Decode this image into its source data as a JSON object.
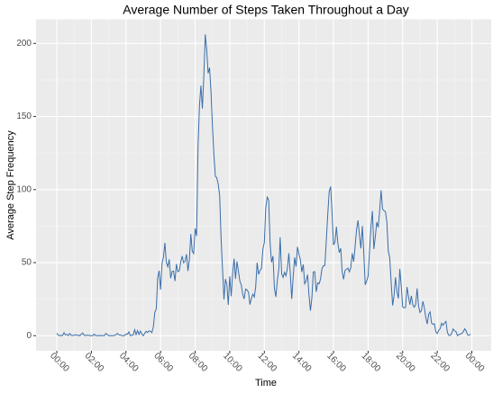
{
  "chart_data": {
    "type": "line",
    "title": "Average Number of Steps Taken Throughout a Day",
    "x_label": "Time",
    "y_label": "Average Step Frequency",
    "x": [
      0,
      5,
      10,
      15,
      20,
      25,
      30,
      35,
      40,
      45,
      50,
      55,
      60,
      65,
      70,
      75,
      80,
      85,
      90,
      95,
      100,
      105,
      110,
      115,
      120,
      125,
      130,
      135,
      140,
      145,
      150,
      155,
      160,
      165,
      170,
      175,
      180,
      185,
      190,
      195,
      200,
      205,
      210,
      215,
      220,
      225,
      230,
      235,
      240,
      245,
      250,
      255,
      260,
      265,
      270,
      275,
      280,
      285,
      290,
      295,
      300,
      305,
      310,
      315,
      320,
      325,
      330,
      335,
      340,
      345,
      350,
      355,
      360,
      365,
      370,
      375,
      380,
      385,
      390,
      395,
      400,
      405,
      410,
      415,
      420,
      425,
      430,
      435,
      440,
      445,
      450,
      455,
      460,
      465,
      470,
      475,
      480,
      485,
      490,
      495,
      500,
      505,
      510,
      515,
      520,
      525,
      530,
      535,
      540,
      545,
      550,
      555,
      560,
      565,
      570,
      575,
      580,
      585,
      590,
      595,
      600,
      605,
      610,
      615,
      620,
      625,
      630,
      635,
      640,
      645,
      650,
      655,
      660,
      665,
      670,
      675,
      680,
      685,
      690,
      695,
      700,
      705,
      710,
      715,
      720,
      725,
      730,
      735,
      740,
      745,
      750,
      755,
      760,
      765,
      770,
      775,
      780,
      785,
      790,
      795,
      800,
      805,
      810,
      815,
      820,
      825,
      830,
      835,
      840,
      845,
      850,
      855,
      860,
      865,
      870,
      875,
      880,
      885,
      890,
      895,
      900,
      905,
      910,
      915,
      920,
      925,
      930,
      935,
      940,
      945,
      950,
      955,
      960,
      965,
      970,
      975,
      980,
      985,
      990,
      995,
      1000,
      1005,
      1010,
      1015,
      1020,
      1025,
      1030,
      1035,
      1040,
      1045,
      1050,
      1055,
      1060,
      1065,
      1070,
      1075,
      1080,
      1085,
      1090,
      1095,
      1100,
      1105,
      1110,
      1115,
      1120,
      1125,
      1130,
      1135,
      1140,
      1145,
      1150,
      1155,
      1160,
      1165,
      1170,
      1175,
      1180,
      1185,
      1190,
      1195,
      1200,
      1205,
      1210,
      1215,
      1220,
      1225,
      1230,
      1235,
      1240,
      1245,
      1250,
      1255,
      1260,
      1265,
      1270,
      1275,
      1280,
      1285,
      1290,
      1295,
      1300,
      1305,
      1310,
      1315,
      1320,
      1325,
      1330,
      1335,
      1340,
      1345,
      1350,
      1355,
      1360,
      1365,
      1370,
      1375,
      1380,
      1385,
      1390,
      1395,
      1400,
      1405,
      1410,
      1415,
      1420,
      1425,
      1430,
      1435
    ],
    "series": [
      {
        "name": "steps",
        "color": "#3a6eaa",
        "values": [
          1.7,
          0.3,
          0.1,
          0.2,
          0.1,
          2.1,
          0.5,
          0.9,
          0,
          1.5,
          0.3,
          0.1,
          0.3,
          0.7,
          0.2,
          0.3,
          0,
          1.1,
          1.8,
          0.2,
          0.2,
          0.4,
          0.3,
          0,
          0,
          0,
          1.1,
          0,
          0,
          0.1,
          0,
          0.2,
          0,
          0,
          1.5,
          0.9,
          0,
          0,
          0,
          0,
          0.2,
          0.6,
          1.6,
          0.6,
          0.5,
          0.1,
          0,
          0,
          1.2,
          0.9,
          2.6,
          0,
          0.3,
          0.4,
          4.1,
          0.7,
          3.5,
          0.8,
          3.1,
          1.1,
          0,
          1.6,
          3,
          2.2,
          3.3,
          3,
          2.1,
          6.1,
          16,
          18.3,
          39.5,
          44.5,
          31.5,
          49.3,
          53.8,
          63.5,
          50,
          47.1,
          52.2,
          39.3,
          44,
          44.2,
          37.4,
          49,
          43.8,
          44.4,
          50.5,
          54.5,
          49.9,
          51,
          55.7,
          44.3,
          52.3,
          69.5,
          57.8,
          56.2,
          73.4,
          68.2,
          129.4,
          157.5,
          171.2,
          155.4,
          177.3,
          206.2,
          195.9,
          179.6,
          183.4,
          167,
          143.5,
          124,
          109.1,
          108.1,
          103.7,
          96,
          66.2,
          45.2,
          24.8,
          38.8,
          35,
          21.1,
          40.6,
          27,
          42.4,
          52.7,
          38.9,
          50.8,
          44.3,
          37.4,
          34.7,
          28.3,
          25.1,
          31.9,
          31.4,
          29.7,
          21.3,
          25.5,
          28.4,
          26.5,
          33.4,
          50,
          42,
          44.6,
          46,
          59.2,
          63.9,
          87.7,
          94.8,
          92.8,
          63.4,
          50.2,
          54.5,
          32.4,
          26.5,
          37.7,
          45.1,
          67.3,
          42.3,
          39.9,
          43.3,
          41,
          46.2,
          56.4,
          42.8,
          25.1,
          40,
          53.5,
          47.3,
          60.8,
          55.8,
          52,
          43.6,
          48.7,
          35.5,
          37.5,
          41.8,
          27.5,
          17.1,
          26.1,
          43.6,
          43.8,
          30,
          36.1,
          35.5,
          38.8,
          46,
          47.8,
          48.1,
          65.3,
          82.9,
          98.7,
          102.1,
          84,
          62.1,
          64.1,
          74.5,
          63.2,
          56.9,
          59.8,
          43.9,
          38.6,
          44.7,
          45.5,
          46.2,
          43.7,
          46.6,
          56.3,
          50.7,
          61.2,
          72.7,
          78.9,
          68.9,
          59.7,
          75.1,
          56.5,
          34.8,
          37.5,
          40.7,
          58,
          74.7,
          85.3,
          59.3,
          67.8,
          77.7,
          74.2,
          85.3,
          99.5,
          86.6,
          85.6,
          84.9,
          77.8,
          58,
          53.4,
          36.3,
          20.7,
          27.4,
          40,
          30.2,
          25.5,
          45.7,
          33.5,
          19.6,
          19,
          19.3,
          33.3,
          26.8,
          21.2,
          27.3,
          21.3,
          19.5,
          21.3,
          32.3,
          20.2,
          15.9,
          17.2,
          23.5,
          19.2,
          12.5,
          8,
          14.7,
          16.3,
          8.7,
          7.8,
          8.1,
          2.6,
          1.5,
          3.7,
          4.8,
          8.5,
          7.1,
          8.7,
          9.8,
          2.2,
          0.3,
          0.1,
          1.6,
          4.6,
          3.3,
          2.8,
          0,
          0.8,
          1,
          1.6,
          2.6,
          4.7,
          3.3,
          0.6,
          0.2,
          1.1
        ]
      }
    ],
    "xlim": [
      -72,
      1507
    ],
    "ylim": [
      -10.3,
      216.5
    ],
    "xticks": [
      {
        "value": 0,
        "label": "00:00"
      },
      {
        "value": 120,
        "label": "02:00"
      },
      {
        "value": 240,
        "label": "04:00"
      },
      {
        "value": 360,
        "label": "06:00"
      },
      {
        "value": 480,
        "label": "08:00"
      },
      {
        "value": 600,
        "label": "10:00"
      },
      {
        "value": 720,
        "label": "12:00"
      },
      {
        "value": 840,
        "label": "14:00"
      },
      {
        "value": 960,
        "label": "16:00"
      },
      {
        "value": 1080,
        "label": "18:00"
      },
      {
        "value": 1200,
        "label": "20:00"
      },
      {
        "value": 1320,
        "label": "22:00"
      },
      {
        "value": 1440,
        "label": "00:00"
      }
    ],
    "yticks": [
      0,
      50,
      100,
      150,
      200
    ],
    "grid": true
  }
}
